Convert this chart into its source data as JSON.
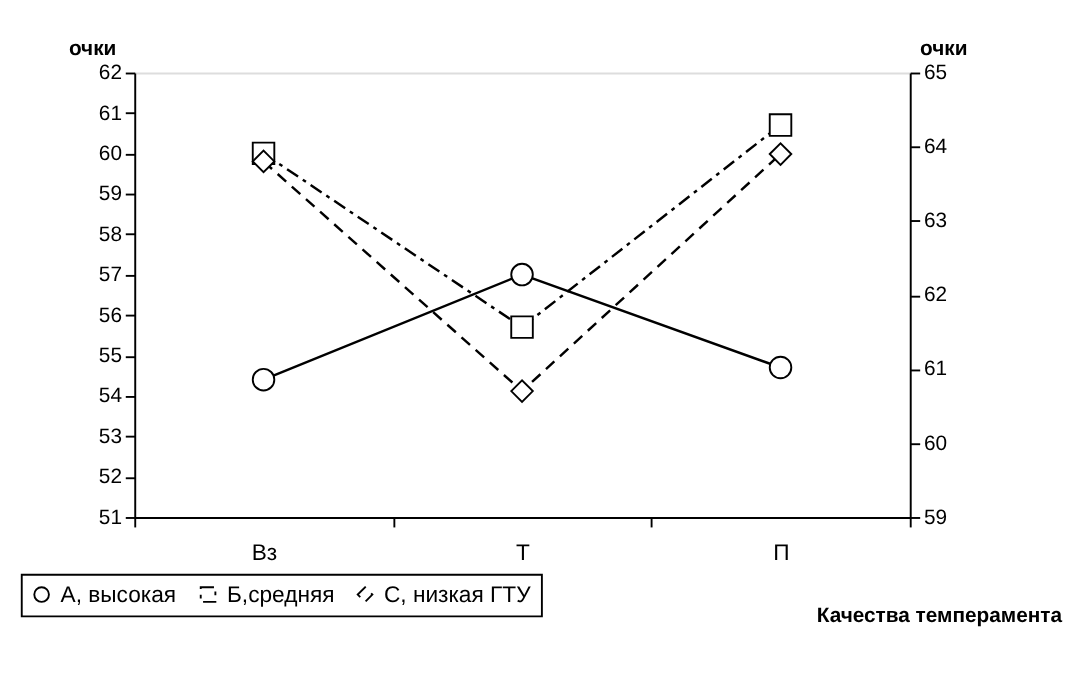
{
  "chart_data": {
    "type": "line",
    "xlabel": "Качества темперамента",
    "ylabel": "очки",
    "y2label": "очки",
    "categories": [
      "Вз",
      "Т",
      "П"
    ],
    "series": [
      {
        "name": "А, высокая",
        "color": "#000000",
        "values": [
          54.4,
          57.0,
          54.7
        ],
        "marker": "circle",
        "line_style": "solid"
      },
      {
        "name": "Б,средняя",
        "color": "#000000",
        "values": [
          60.0,
          55.7,
          60.7
        ],
        "marker": "square",
        "line_style": "dashdot"
      },
      {
        "name": "С, низкая ГТУ",
        "color": "#000000",
        "values": [
          63.8,
          60.7,
          63.9
        ],
        "marker": "diamond",
        "line_style": "dashed",
        "axis": "y2"
      }
    ],
    "ylim": [
      51,
      62
    ],
    "yticks": [
      51,
      52,
      53,
      54,
      55,
      56,
      57,
      58,
      59,
      60,
      61,
      62
    ],
    "y2lim": [
      59,
      65
    ],
    "y2ticks": [
      59,
      60,
      61,
      62,
      63,
      64,
      65
    ],
    "grid": false,
    "legend": "bottom left"
  }
}
